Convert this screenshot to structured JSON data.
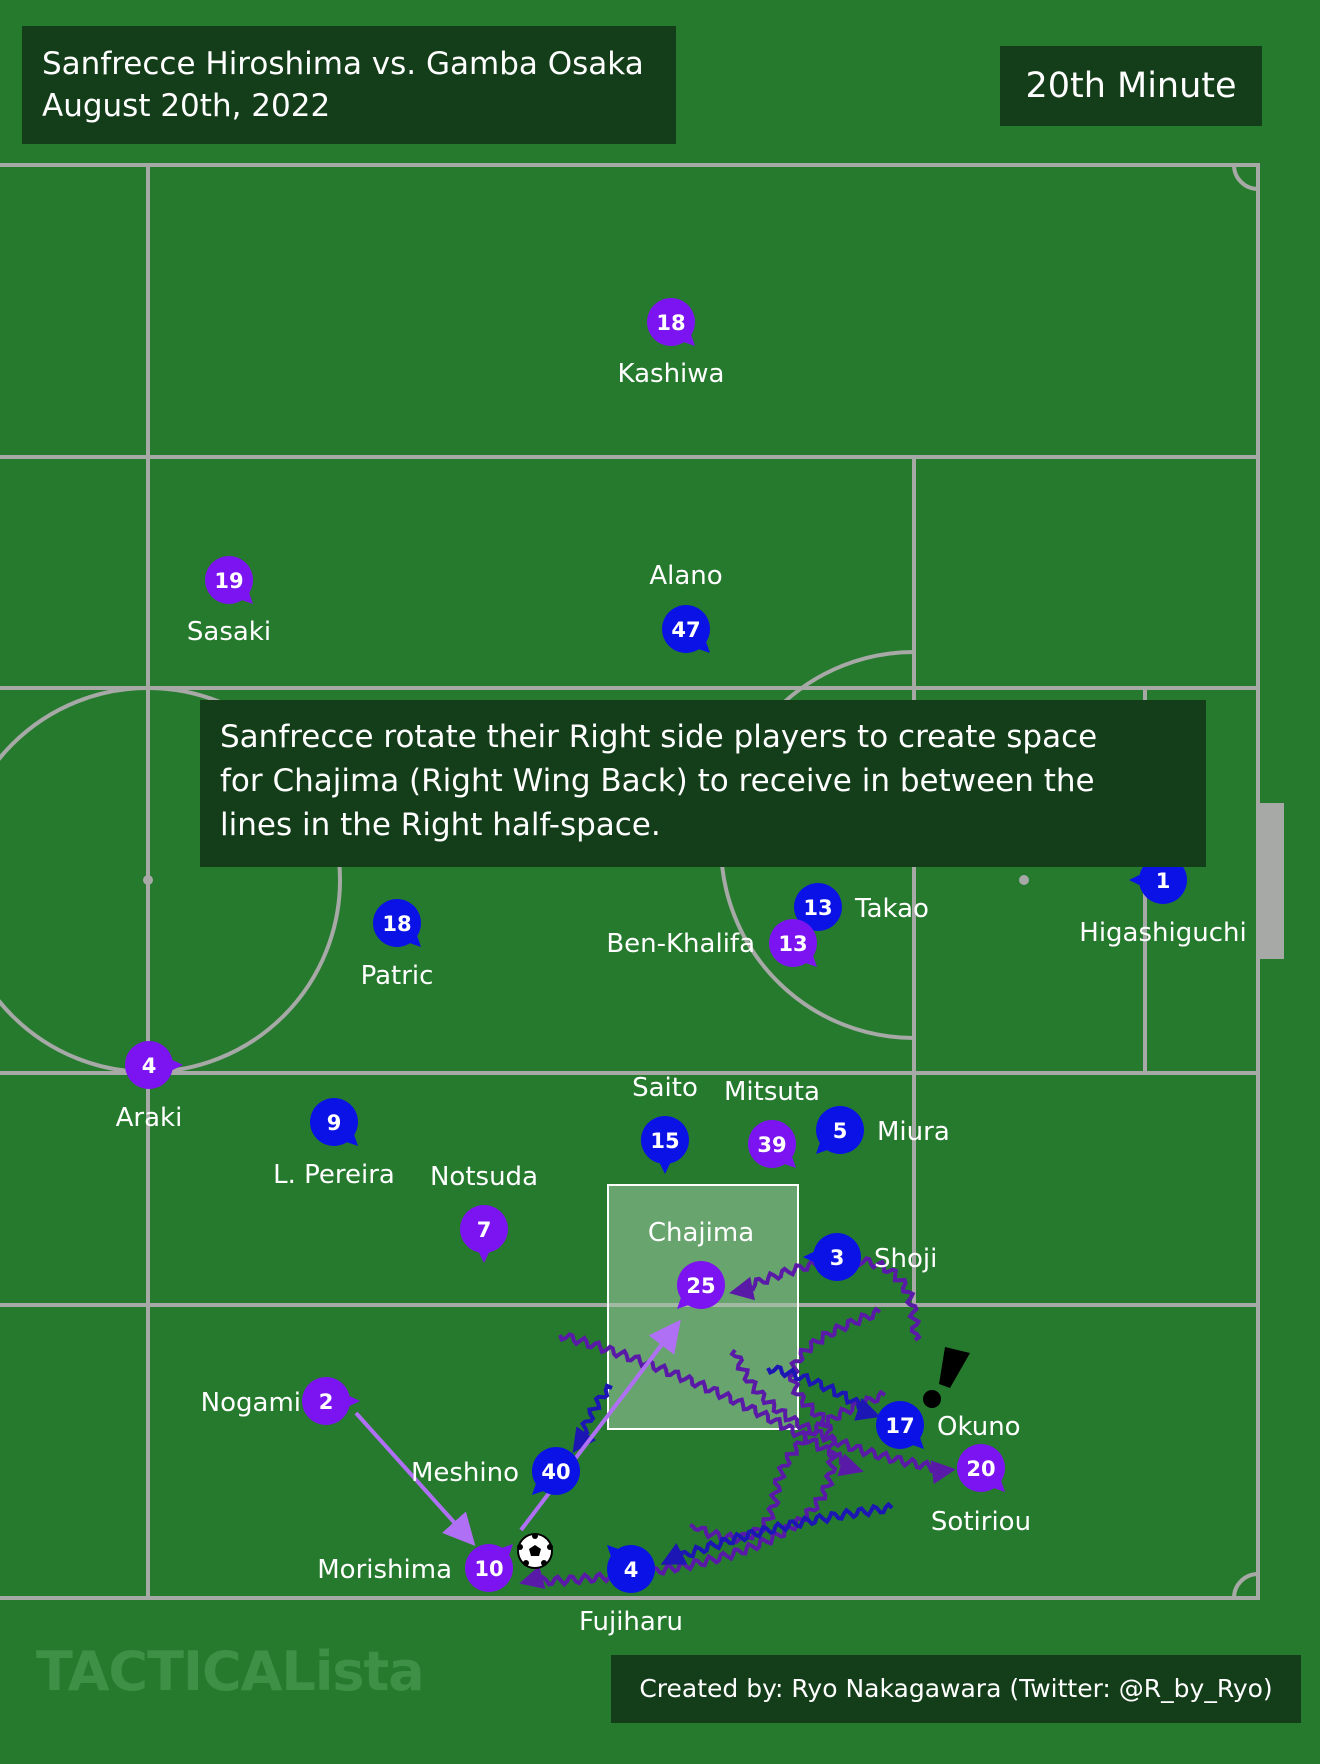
{
  "header": {
    "match": "Sanfrecce Hiroshima vs. Gamba Osaka",
    "date": "August 20th, 2022",
    "minute": "20th Minute"
  },
  "annotation": {
    "lines": [
      "Sanfrecce rotate their Right side players to create space",
      "for Chajima (Right Wing Back) to receive in between the",
      "lines in the Right half-space."
    ]
  },
  "credit": "Created by: Ryo Nakagawara (Twitter: @R_by_Ryo)",
  "watermark": "TACTICALista",
  "colors": {
    "pitch": "#267a2e",
    "lines": "#a7a9a7",
    "sanfrecce": "#7b14f0",
    "gamba": "#0b12e6",
    "run_sanfrecce": "#5a1aa8",
    "run_gamba": "#1b16b4",
    "pass": "#b070f5",
    "box_bg": "#143e1a"
  },
  "players": [
    {
      "team": "sanfrecce",
      "number": "18",
      "name": "Kashiwa"
    },
    {
      "team": "sanfrecce",
      "number": "19",
      "name": "Sasaki"
    },
    {
      "team": "gamba",
      "number": "47",
      "name": "Alano"
    },
    {
      "team": "gamba",
      "number": "18",
      "name": "Patric"
    },
    {
      "team": "gamba",
      "number": "13",
      "name": "Takao"
    },
    {
      "team": "sanfrecce",
      "number": "13",
      "name": "Ben-Khalifa"
    },
    {
      "team": "gamba",
      "number": "1",
      "name": "Higashiguchi"
    },
    {
      "team": "sanfrecce",
      "number": "4",
      "name": "Araki"
    },
    {
      "team": "gamba",
      "number": "9",
      "name": "L. Pereira"
    },
    {
      "team": "sanfrecce",
      "number": "7",
      "name": "Notsuda"
    },
    {
      "team": "gamba",
      "number": "15",
      "name": "Saito"
    },
    {
      "team": "sanfrecce",
      "number": "39",
      "name": "Mitsuta"
    },
    {
      "team": "gamba",
      "number": "5",
      "name": "Miura"
    },
    {
      "team": "sanfrecce",
      "number": "25",
      "name": "Chajima"
    },
    {
      "team": "gamba",
      "number": "3",
      "name": "Shoji"
    },
    {
      "team": "sanfrecce",
      "number": "2",
      "name": "Nogami"
    },
    {
      "team": "gamba",
      "number": "40",
      "name": "Meshino"
    },
    {
      "team": "gamba",
      "number": "17",
      "name": "Okuno"
    },
    {
      "team": "sanfrecce",
      "number": "20",
      "name": "Sotiriou"
    },
    {
      "team": "sanfrecce",
      "number": "10",
      "name": "Morishima"
    },
    {
      "team": "gamba",
      "number": "4",
      "name": "Fujiharu"
    }
  ]
}
